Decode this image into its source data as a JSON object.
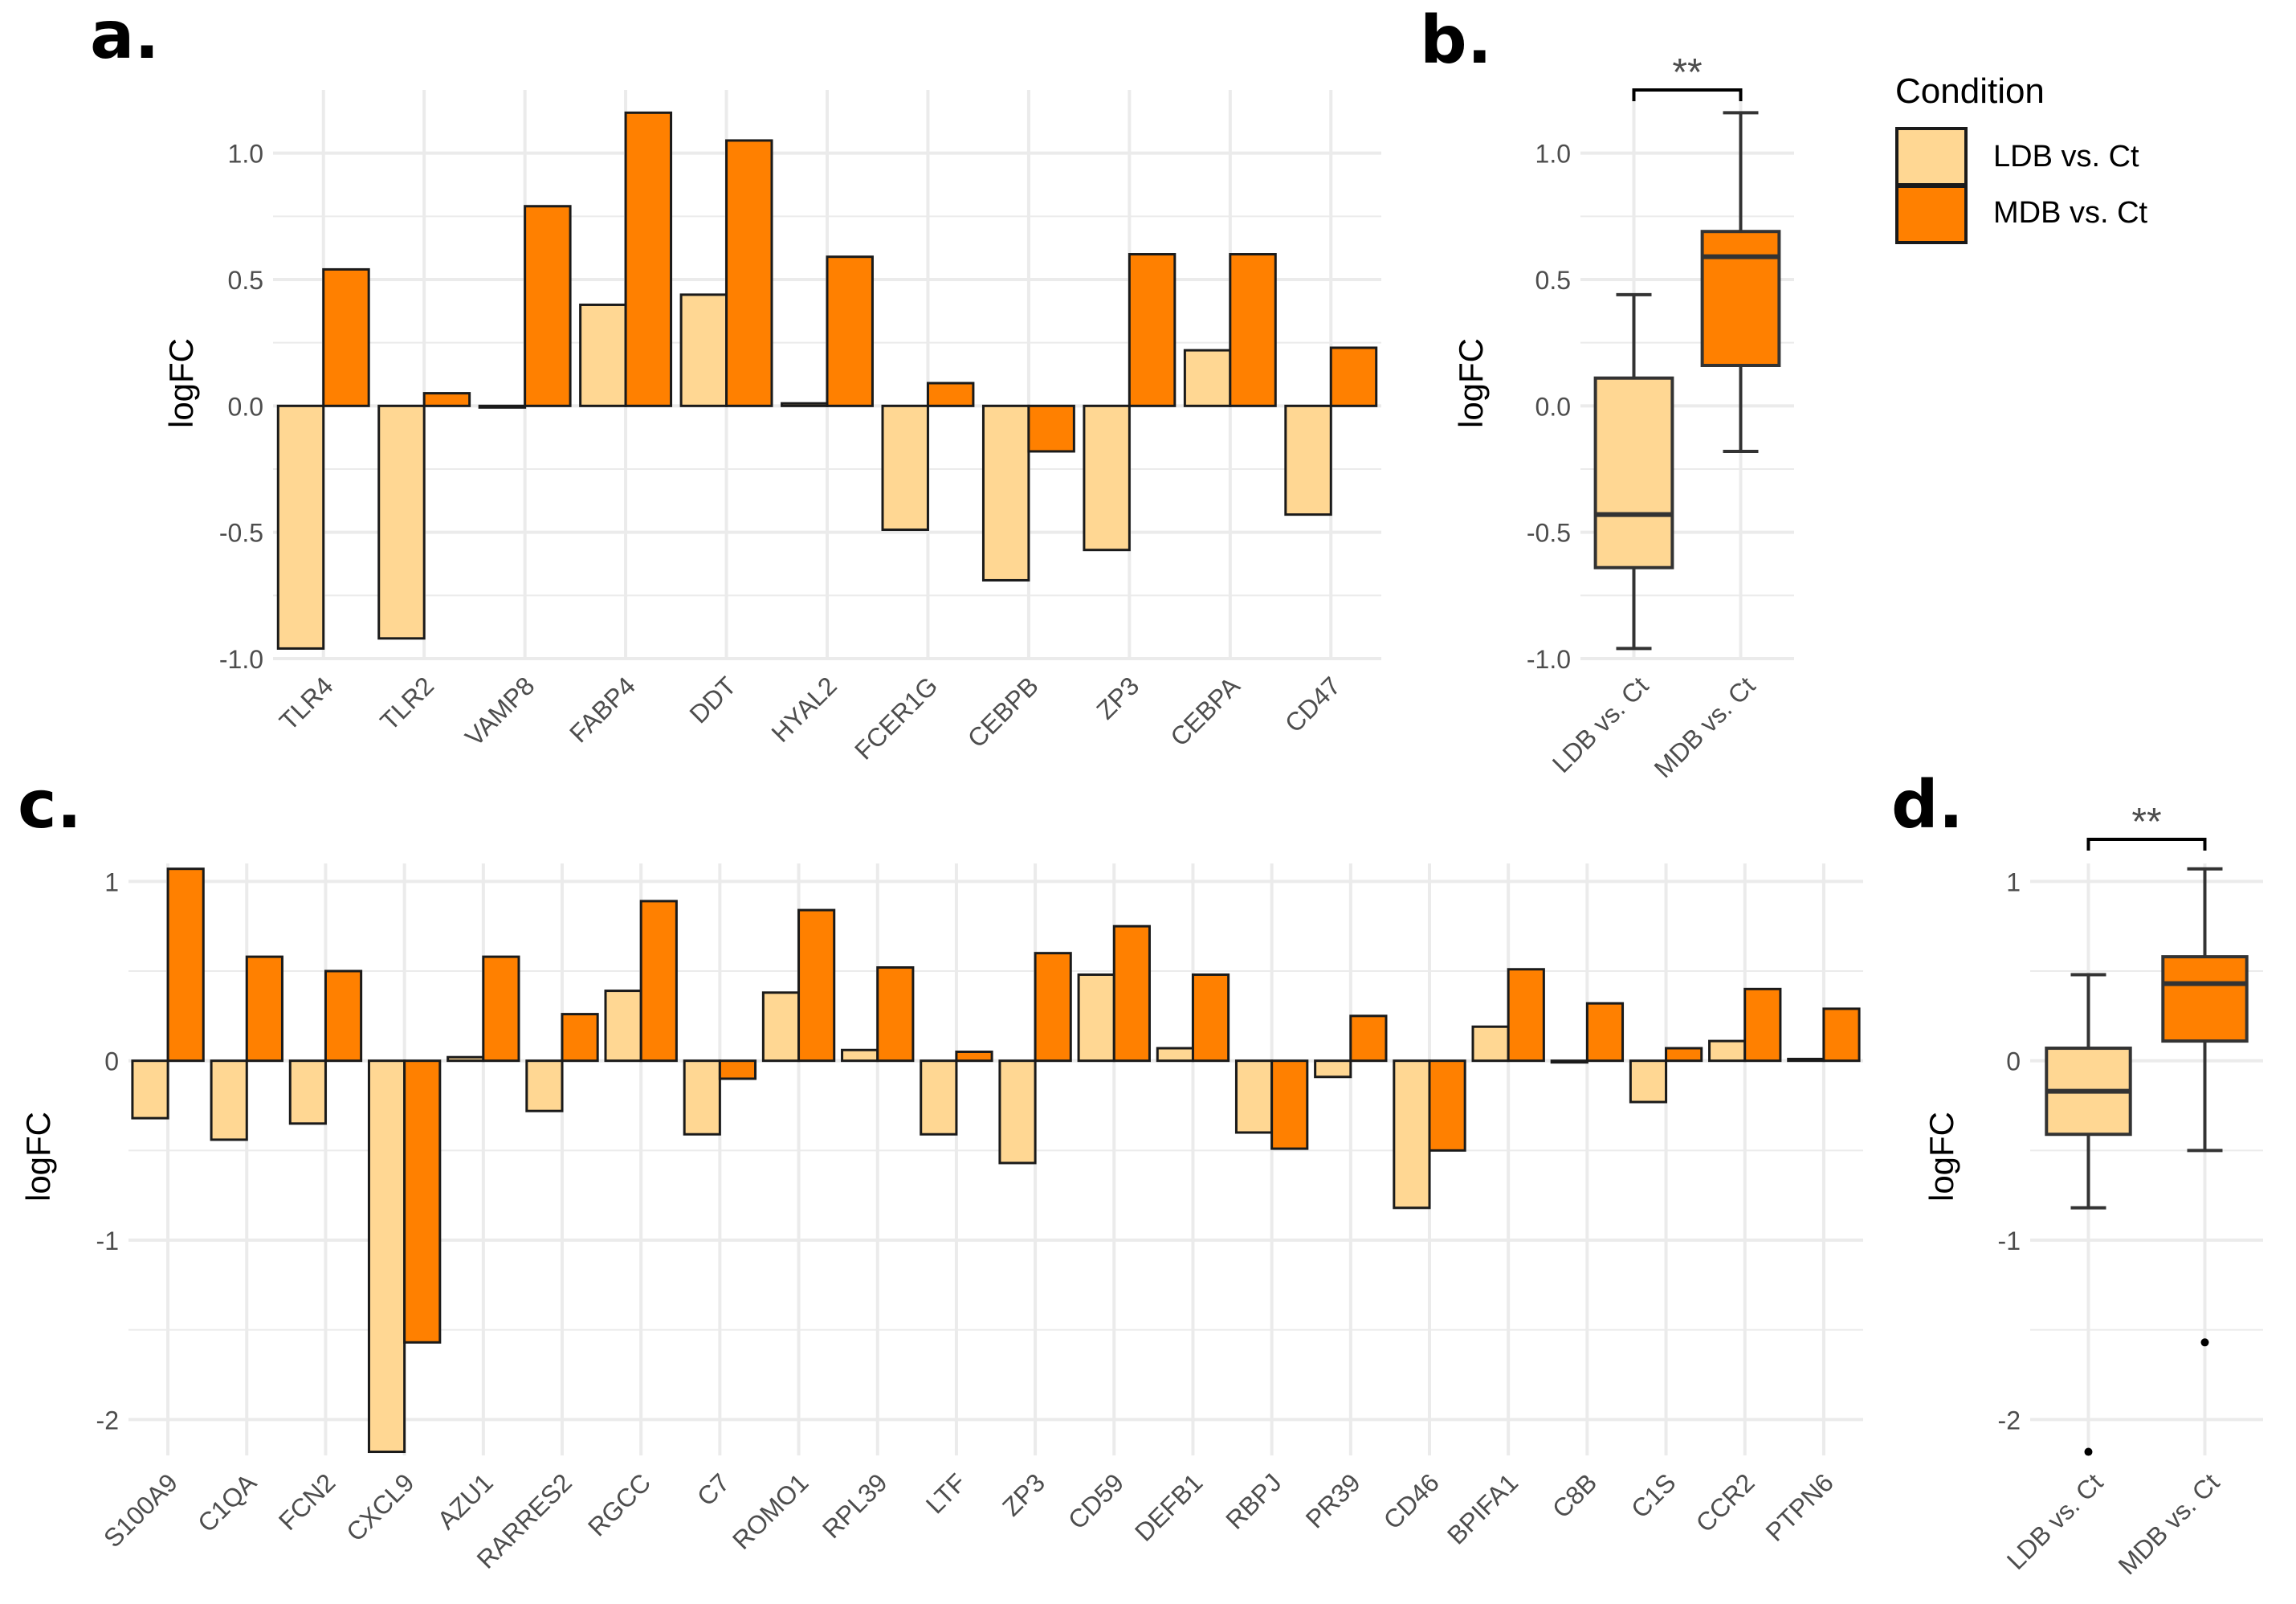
{
  "figure": {
    "colors": {
      "ldb": "#FFD793",
      "mdb": "#FF8000",
      "grid": "#EBEBEB",
      "outline": "#1a1a1a"
    },
    "legend": {
      "title": "Condition",
      "items": [
        {
          "label": "LDB vs. Ct",
          "color": "#FFD793"
        },
        {
          "label": "MDB vs. Ct",
          "color": "#FF8000"
        }
      ]
    }
  },
  "chart_data": [
    {
      "panel": "a.",
      "type": "bar",
      "ylabel": "logFC",
      "ylim": [
        -1.0,
        1.25
      ],
      "yticks": [
        -1.0,
        -0.5,
        0.0,
        0.5,
        1.0
      ],
      "ytick_labels": [
        "-1.0",
        "-0.5",
        "0.0",
        "0.5",
        "1.0"
      ],
      "categories": [
        "TLR4",
        "TLR2",
        "VAMP8",
        "FABP4",
        "DDT",
        "HYAL2",
        "FCER1G",
        "CEBPB",
        "ZP3",
        "CEBPA",
        "CD47"
      ],
      "series": [
        {
          "name": "LDB vs. Ct",
          "values": [
            -0.96,
            -0.92,
            0.0,
            0.4,
            0.44,
            0.01,
            -0.49,
            -0.69,
            -0.57,
            0.22,
            -0.43
          ]
        },
        {
          "name": "MDB vs. Ct",
          "values": [
            0.54,
            0.05,
            0.79,
            1.16,
            1.05,
            0.59,
            0.09,
            -0.18,
            0.6,
            0.6,
            0.23
          ]
        }
      ]
    },
    {
      "panel": "b.",
      "type": "box",
      "ylabel": "logFC",
      "ylim": [
        -1.0,
        1.25
      ],
      "yticks": [
        -1.0,
        -0.5,
        0.0,
        0.5,
        1.0
      ],
      "ytick_labels": [
        "-1.0",
        "-0.5",
        "0.0",
        "0.5",
        "1.0"
      ],
      "categories": [
        "LDB vs. Ct",
        "MDB vs. Ct"
      ],
      "boxes": [
        {
          "min": -0.96,
          "q1": -0.64,
          "median": -0.43,
          "q3": 0.11,
          "max": 0.44,
          "outliers": []
        },
        {
          "min": -0.18,
          "q1": 0.16,
          "median": 0.59,
          "q3": 0.69,
          "max": 1.16,
          "outliers": []
        }
      ],
      "significance": "**"
    },
    {
      "panel": "c.",
      "type": "bar",
      "ylabel": "logFC",
      "ylim": [
        -2.2,
        1.1
      ],
      "yticks": [
        -2,
        -1,
        0,
        1
      ],
      "ytick_labels": [
        "-2",
        "-1",
        "0",
        "1"
      ],
      "categories": [
        "S100A9",
        "C1QA",
        "FCN2",
        "CXCL9",
        "AZU1",
        "RARRES2",
        "RGCC",
        "C7",
        "ROMO1",
        "RPL39",
        "LTF",
        "ZP3",
        "CD59",
        "DEFB1",
        "RBPJ",
        "PR39",
        "CD46",
        "BPIFA1",
        "C8B",
        "C1S",
        "CCR2",
        "PTPN6"
      ],
      "series": [
        {
          "name": "LDB vs. Ct",
          "values": [
            -0.32,
            -0.44,
            -0.35,
            -2.18,
            0.02,
            -0.28,
            0.39,
            -0.41,
            0.38,
            0.06,
            -0.41,
            -0.57,
            0.48,
            0.07,
            -0.4,
            -0.09,
            -0.82,
            0.19,
            0.0,
            -0.23,
            0.11,
            0.01
          ]
        },
        {
          "name": "MDB vs. Ct",
          "values": [
            1.07,
            0.58,
            0.5,
            -1.57,
            0.58,
            0.26,
            0.89,
            -0.1,
            0.84,
            0.52,
            0.05,
            0.6,
            0.75,
            0.48,
            -0.49,
            0.25,
            -0.5,
            0.51,
            0.32,
            0.07,
            0.4,
            0.29
          ]
        }
      ]
    },
    {
      "panel": "d.",
      "type": "box",
      "ylabel": "logFC",
      "ylim": [
        -2.2,
        1.1
      ],
      "yticks": [
        -2,
        -1,
        0,
        1
      ],
      "ytick_labels": [
        "-2",
        "-1",
        "0",
        "1"
      ],
      "categories": [
        "LDB vs. Ct",
        "MDB vs. Ct"
      ],
      "boxes": [
        {
          "min": -0.82,
          "q1": -0.41,
          "median": -0.17,
          "q3": 0.07,
          "max": 0.48,
          "outliers": [
            -2.18
          ]
        },
        {
          "min": -0.5,
          "q1": 0.11,
          "median": 0.43,
          "q3": 0.58,
          "max": 1.07,
          "outliers": [
            -1.57
          ]
        }
      ],
      "significance": "**"
    }
  ]
}
